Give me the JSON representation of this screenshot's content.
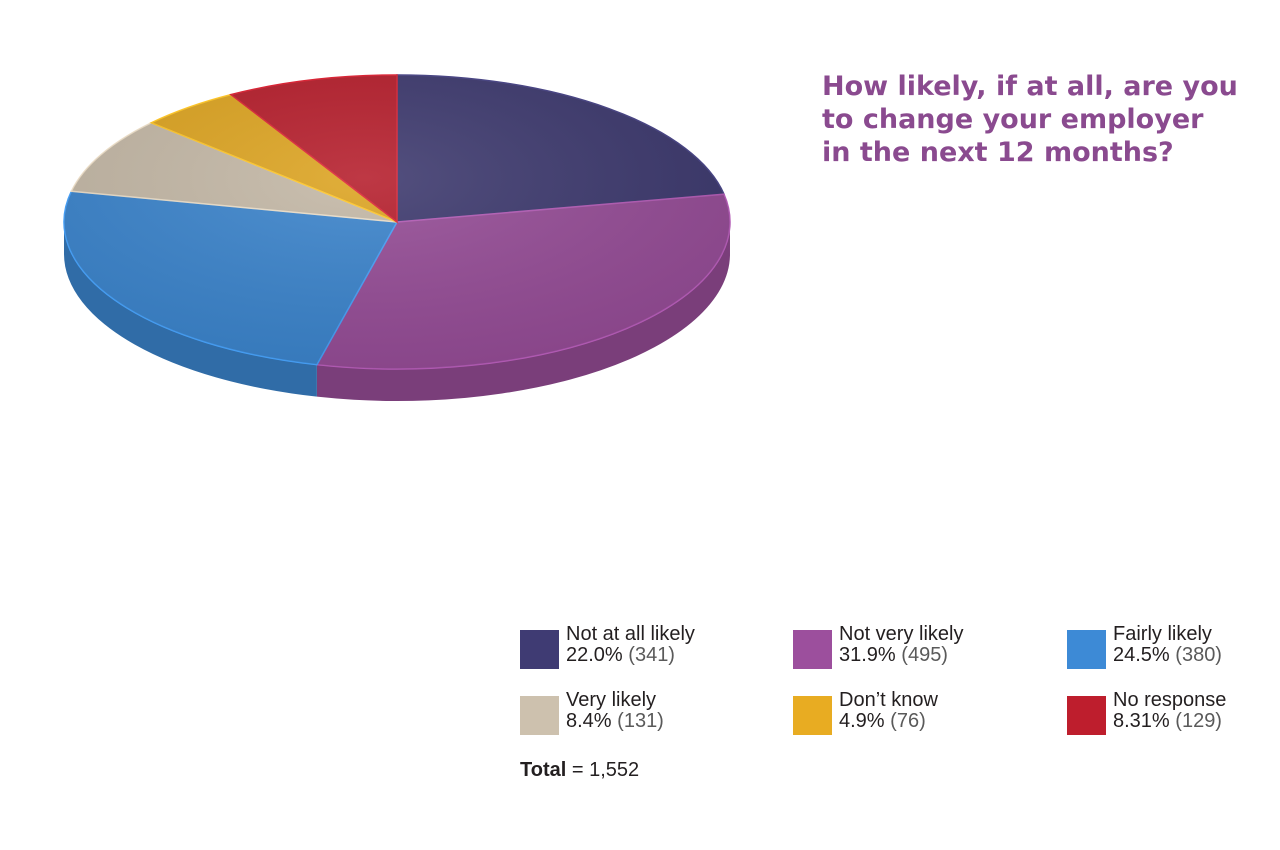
{
  "chart_data": {
    "type": "pie",
    "title_lines": [
      "How likely, if at all, are you",
      "to change your employer",
      "in the next 12 months?"
    ],
    "slices": [
      {
        "label": "Not at all likely",
        "percent_label": "22.0%",
        "count_label": "(341)",
        "value": 341,
        "color": "#3f3b73"
      },
      {
        "label": "Not very likely",
        "percent_label": "31.9%",
        "count_label": "(495)",
        "value": 495,
        "color": "#9c4f9d"
      },
      {
        "label": "Fairly likely",
        "percent_label": "24.5%",
        "count_label": "(380)",
        "value": 380,
        "color": "#3d8ad6"
      },
      {
        "label": "Very likely",
        "percent_label": "8.4%",
        "count_label": "(131)",
        "value": 131,
        "color": "#cdc1ae"
      },
      {
        "label": "Don’t know",
        "percent_label": "4.9%",
        "count_label": "(76)",
        "value": 76,
        "color": "#e8ac22"
      },
      {
        "label": "No response",
        "percent_label": "8.31%",
        "count_label": "(129)",
        "value": 129,
        "color": "#be1e2d"
      }
    ],
    "total": {
      "label": "Total",
      "value": "= 1,552"
    }
  }
}
